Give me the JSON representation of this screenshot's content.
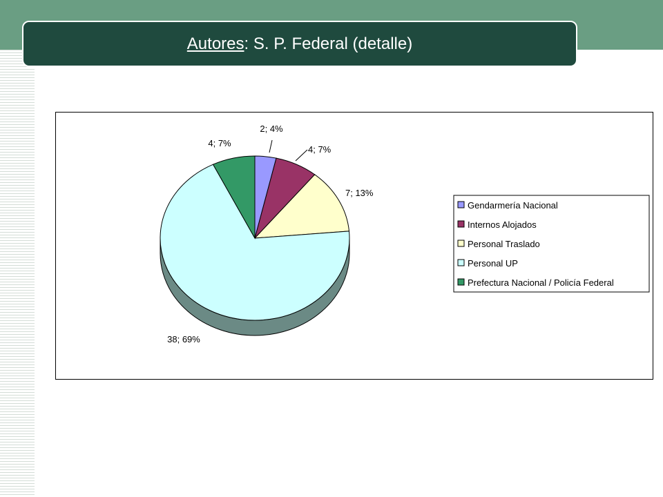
{
  "title": {
    "underlined": "Autores",
    "rest": ": S. P. Federal (detalle)"
  },
  "chart_data": {
    "type": "pie",
    "title": "",
    "legend_position": "right",
    "slices": [
      {
        "name": "Gendarmería Nacional",
        "value": 2,
        "percent": 4,
        "label": "2; 4%",
        "color": "#9999ff"
      },
      {
        "name": "Internos Alojados",
        "value": 4,
        "percent": 7,
        "label": "4; 7%",
        "color": "#993366"
      },
      {
        "name": "Personal Traslado",
        "value": 7,
        "percent": 13,
        "label": "7; 13%",
        "color": "#ffffcc"
      },
      {
        "name": "Personal UP",
        "value": 38,
        "percent": 69,
        "label": "38; 69%",
        "color": "#ccffff"
      },
      {
        "name": "Prefectura Nacional / Policía Federal",
        "value": 4,
        "percent": 7,
        "label": "4; 7%",
        "color": "#339966"
      }
    ]
  }
}
